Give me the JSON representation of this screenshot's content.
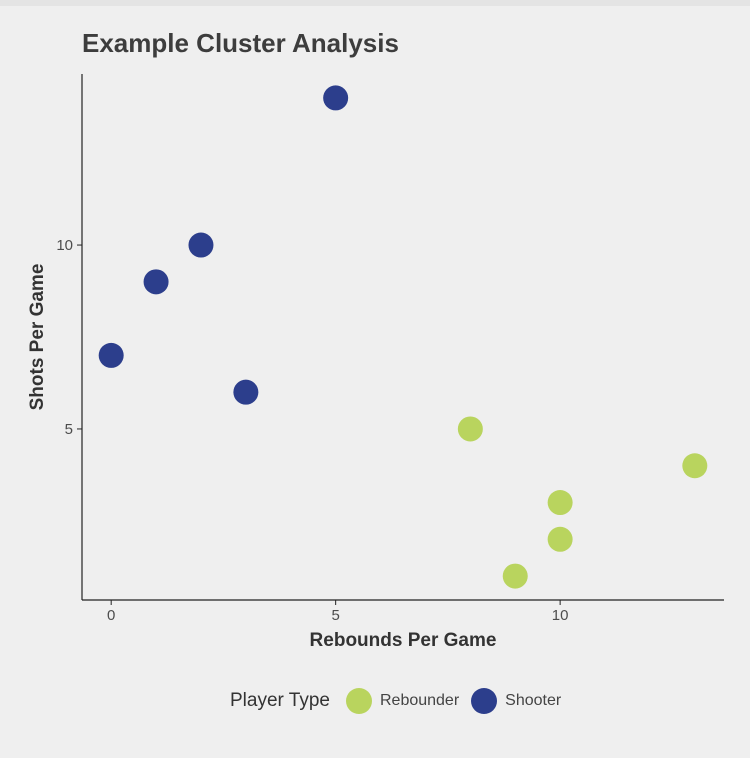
{
  "chart_data": {
    "type": "scatter",
    "title": "Example Cluster Analysis",
    "xlabel": "Rebounds Per Game",
    "ylabel": "Shots Per Game",
    "xlim": [
      -0.65,
      13.65
    ],
    "ylim": [
      0.35,
      14.65
    ],
    "xticks": [
      0,
      5,
      10
    ],
    "yticks": [
      5,
      10
    ],
    "grid": false,
    "legend": {
      "title": "Player Type",
      "placement": "bottom"
    },
    "series": [
      {
        "name": "Rebounder",
        "color": "#b9d45e",
        "points": [
          [
            8,
            5
          ],
          [
            13,
            4
          ],
          [
            10,
            3
          ],
          [
            10,
            2
          ],
          [
            9,
            1
          ]
        ]
      },
      {
        "name": "Shooter",
        "color": "#2c3e8c",
        "points": [
          [
            5,
            14
          ],
          [
            2,
            10
          ],
          [
            1,
            9
          ],
          [
            0,
            7
          ],
          [
            3,
            6
          ]
        ]
      }
    ]
  }
}
